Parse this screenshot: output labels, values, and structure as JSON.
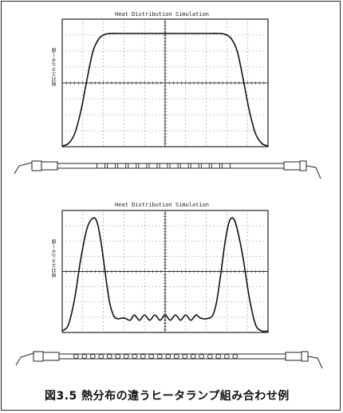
{
  "caption": "図3.5 熱分布の違うヒータランプ組み合わせ例",
  "chart_data": [
    {
      "type": "line",
      "title": "Heat Distribution Simulation",
      "ylabel": "相対エネルギー値",
      "xlabel": "",
      "grid": true,
      "xlim": [
        0,
        10
      ],
      "ylim": [
        0,
        8
      ],
      "series": [
        {
          "x": [
            0,
            0.3,
            0.6,
            0.9,
            1.2,
            1.5,
            1.8,
            2.1,
            2.4,
            2.7,
            3,
            3.5,
            4,
            5,
            6,
            6.5,
            7,
            7.3,
            7.6,
            7.9,
            8.2,
            8.5,
            8.8,
            9.1,
            9.4,
            9.7,
            10
          ],
          "values": [
            0.05,
            0.2,
            0.8,
            2.2,
            4.2,
            6,
            6.8,
            7.05,
            7.1,
            7.1,
            7.1,
            7.1,
            7.1,
            7.1,
            7.1,
            7.1,
            7.1,
            7.1,
            7.1,
            7.05,
            6.8,
            6,
            4.2,
            2.2,
            0.8,
            0.2,
            0.05
          ]
        }
      ]
    },
    {
      "type": "line",
      "title": "Heat Distribution Simulation",
      "ylabel": "相対エネルギー値",
      "xlabel": "",
      "grid": true,
      "xlim": [
        0,
        10
      ],
      "ylim": [
        0,
        8
      ],
      "series": [
        {
          "x": [
            0,
            0.3,
            0.6,
            0.9,
            1.2,
            1.5,
            1.7,
            1.9,
            2.1,
            2.3,
            2.5,
            2.7,
            3,
            3.3,
            3.5,
            3.75,
            4,
            4.25,
            4.5,
            4.75,
            5,
            5.25,
            5.5,
            5.75,
            6,
            6.25,
            6.5,
            6.7,
            7,
            7.3,
            7.5,
            7.7,
            7.9,
            8.1,
            8.3,
            8.5,
            8.8,
            9.1,
            9.4,
            9.7,
            10
          ],
          "values": [
            0.1,
            0.5,
            2.2,
            4.8,
            6.8,
            7.5,
            7.2,
            5.8,
            3.8,
            2,
            1.1,
            0.9,
            0.95,
            0.8,
            1.15,
            0.8,
            1.15,
            0.8,
            1.15,
            0.8,
            1.15,
            0.8,
            1.15,
            0.8,
            1.15,
            0.8,
            1.15,
            0.95,
            0.9,
            1.1,
            2,
            3.8,
            5.8,
            7.2,
            7.5,
            6.8,
            4.8,
            2.2,
            0.5,
            0.1,
            0.1
          ]
        }
      ]
    }
  ]
}
